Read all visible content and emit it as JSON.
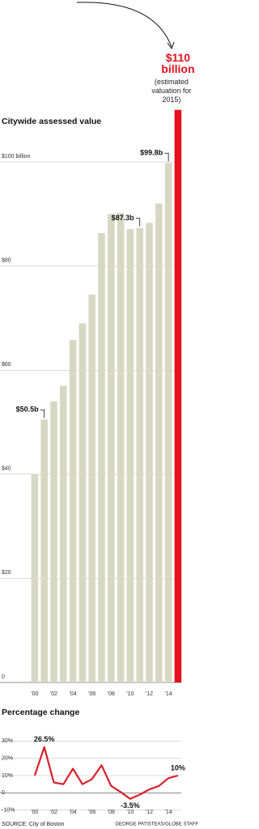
{
  "chart_data": [
    {
      "type": "bar",
      "title": "Citywide assessed value",
      "categories": [
        "'00",
        null,
        "'02",
        null,
        "'04",
        null,
        "'06",
        null,
        "'08",
        null,
        "'10",
        null,
        "'12",
        null,
        "'14",
        null
      ],
      "values": [
        40,
        50.5,
        54,
        57,
        65.8,
        69,
        74.5,
        86.3,
        90,
        90.2,
        87.1,
        87.3,
        88.3,
        92,
        99.8,
        110
      ],
      "value_labels": [
        null,
        "$50.5b",
        null,
        null,
        null,
        null,
        null,
        null,
        null,
        null,
        null,
        "$87.3b",
        null,
        null,
        "$99.8b",
        "$110 billion"
      ],
      "colors": [
        "#d6d8c4",
        "#d6d8c4",
        "#d6d8c4",
        "#d6d8c4",
        "#d6d8c4",
        "#d6d8c4",
        "#d6d8c4",
        "#d6d8c4",
        "#d6d8c4",
        "#d6d8c4",
        "#d6d8c4",
        "#d6d8c4",
        "#d6d8c4",
        "#d6d8c4",
        "#d6d8c4",
        "#e3101e"
      ],
      "annotation": "(estimated valuation for 2015)",
      "ylim": [
        0,
        100
      ],
      "yticks": [
        0,
        {
          "value": 20,
          "label": "$20"
        },
        {
          "value": 40,
          "label": "$40"
        },
        {
          "value": 60,
          "label": "$60"
        },
        {
          "value": 80,
          "label": "$80"
        },
        {
          "value": 100,
          "label": "$100 billion"
        }
      ],
      "grid": true
    },
    {
      "type": "line",
      "title": "Percentage change",
      "categories": [
        "'00",
        null,
        "'02",
        null,
        "'04",
        null,
        "'06",
        null,
        "'08",
        null,
        "'10",
        null,
        "'12",
        null,
        "'14",
        null
      ],
      "values": [
        10,
        26.5,
        6,
        5,
        14,
        5,
        8,
        16,
        4,
        0.5,
        -3.5,
        -1,
        2,
        4,
        8.5,
        10
      ],
      "value_labels": [
        null,
        "26.5%",
        null,
        null,
        null,
        null,
        null,
        null,
        null,
        null,
        "-3.5%",
        null,
        null,
        null,
        null,
        "10%"
      ],
      "color": "#d8202a",
      "ylim": [
        -12,
        32
      ],
      "yticks": [
        {
          "value": 30,
          "label": "30%"
        },
        {
          "value": 20,
          "label": "20%"
        },
        {
          "value": 10,
          "label": "10%"
        },
        0,
        {
          "value": -10,
          "label": "-10%"
        }
      ],
      "grid": true,
      "source": "SOURCE: City of Boston",
      "credit": "GEORGE PATISTEAS/GLOBE STAFF"
    }
  ]
}
